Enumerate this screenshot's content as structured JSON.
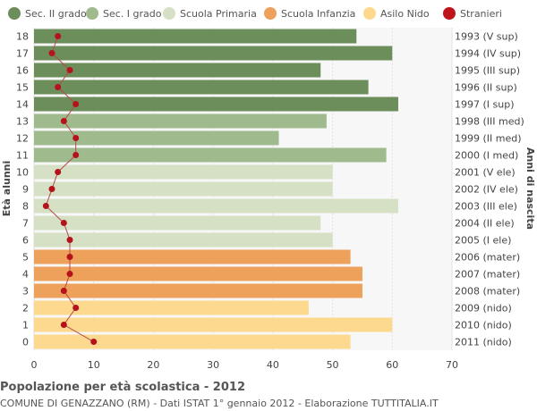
{
  "chart_data": {
    "type": "bar",
    "orientation": "horizontal",
    "title": "Popolazione per età scolastica - 2012",
    "subtitle": "COMUNE DI GENAZZANO (RM) - Dati ISTAT 1° gennaio 2012 - Elaborazione TUTTITALIA.IT",
    "ylabel": "Età alunni",
    "ylabel_right": "Anni di nascita",
    "xlim": [
      0,
      70
    ],
    "xticks": [
      0,
      10,
      20,
      30,
      40,
      50,
      60,
      70
    ],
    "grid": true,
    "legend_position": "top",
    "legend": [
      {
        "name": "Sec. II grado",
        "color": "#6b8e5a"
      },
      {
        "name": "Sec. I grado",
        "color": "#9fbb8e"
      },
      {
        "name": "Scuola Primaria",
        "color": "#d5e0c5"
      },
      {
        "name": "Scuola Infanzia",
        "color": "#eda15a"
      },
      {
        "name": "Asilo Nido",
        "color": "#fdd98f"
      },
      {
        "name": "Stranieri",
        "color": "#c0141c"
      }
    ],
    "rows": [
      {
        "age": "18",
        "birth": "1993 (V sup)",
        "value": 54,
        "stranieri": 4,
        "group": 0
      },
      {
        "age": "17",
        "birth": "1994 (IV sup)",
        "value": 60,
        "stranieri": 3,
        "group": 0
      },
      {
        "age": "16",
        "birth": "1995 (III sup)",
        "value": 48,
        "stranieri": 6,
        "group": 0
      },
      {
        "age": "15",
        "birth": "1996 (II sup)",
        "value": 56,
        "stranieri": 4,
        "group": 0
      },
      {
        "age": "14",
        "birth": "1997 (I sup)",
        "value": 61,
        "stranieri": 7,
        "group": 0
      },
      {
        "age": "13",
        "birth": "1998 (III med)",
        "value": 49,
        "stranieri": 5,
        "group": 1
      },
      {
        "age": "12",
        "birth": "1999 (II med)",
        "value": 41,
        "stranieri": 7,
        "group": 1
      },
      {
        "age": "11",
        "birth": "2000 (I med)",
        "value": 59,
        "stranieri": 7,
        "group": 1
      },
      {
        "age": "10",
        "birth": "2001 (V ele)",
        "value": 50,
        "stranieri": 4,
        "group": 2
      },
      {
        "age": "9",
        "birth": "2002 (IV ele)",
        "value": 50,
        "stranieri": 3,
        "group": 2
      },
      {
        "age": "8",
        "birth": "2003 (III ele)",
        "value": 61,
        "stranieri": 2,
        "group": 2
      },
      {
        "age": "7",
        "birth": "2004 (II ele)",
        "value": 48,
        "stranieri": 5,
        "group": 2
      },
      {
        "age": "6",
        "birth": "2005 (I ele)",
        "value": 50,
        "stranieri": 6,
        "group": 2
      },
      {
        "age": "5",
        "birth": "2006 (mater)",
        "value": 53,
        "stranieri": 6,
        "group": 3
      },
      {
        "age": "4",
        "birth": "2007 (mater)",
        "value": 55,
        "stranieri": 6,
        "group": 3
      },
      {
        "age": "3",
        "birth": "2008 (mater)",
        "value": 55,
        "stranieri": 5,
        "group": 3
      },
      {
        "age": "2",
        "birth": "2009 (nido)",
        "value": 46,
        "stranieri": 7,
        "group": 4
      },
      {
        "age": "1",
        "birth": "2010 (nido)",
        "value": 60,
        "stranieri": 5,
        "group": 4
      },
      {
        "age": "0",
        "birth": "2011 (nido)",
        "value": 53,
        "stranieri": 10,
        "group": 4
      }
    ]
  }
}
